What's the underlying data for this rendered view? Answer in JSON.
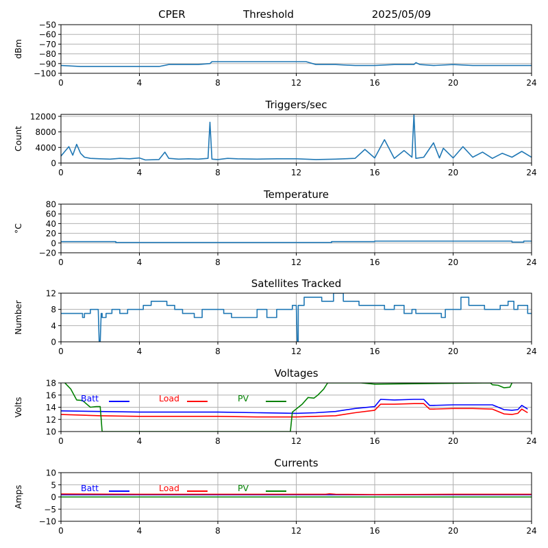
{
  "header": {
    "station": "CPER",
    "mode": "Threshold",
    "date": "2025/05/09"
  },
  "colors": {
    "series": "#1f77b4",
    "batt": "#0000ff",
    "load": "#ff0000",
    "pv": "#008000",
    "grid": "#b0b0b0"
  },
  "chart_data": [
    {
      "type": "line",
      "title": "",
      "ylabel": "dBm",
      "xlim": [
        0,
        24
      ],
      "xticks": [
        0,
        4,
        8,
        12,
        16,
        20,
        24
      ],
      "ylim": [
        -100,
        -50
      ],
      "yticks": [
        -100,
        -90,
        -80,
        -70,
        -60,
        -50
      ],
      "grid": true,
      "series": [
        {
          "color": "#1f77b4",
          "x": [
            0,
            1,
            2,
            3,
            4,
            5,
            5.5,
            7,
            7.6,
            7.7,
            9,
            10,
            12,
            12.5,
            13,
            14,
            15,
            16,
            17,
            18,
            18.1,
            18.3,
            19,
            20,
            21,
            22,
            23,
            24
          ],
          "y": [
            -92,
            -93,
            -93,
            -93,
            -93,
            -93,
            -91,
            -91,
            -90,
            -88,
            -88,
            -88,
            -88,
            -88,
            -91,
            -91,
            -92,
            -92,
            -91,
            -91,
            -89,
            -91,
            -92,
            -91,
            -92,
            -92,
            -92,
            -92
          ]
        }
      ]
    },
    {
      "type": "line",
      "title": "Triggers/sec",
      "ylabel": "Count",
      "xlim": [
        0,
        24
      ],
      "xticks": [
        0,
        4,
        8,
        12,
        16,
        20,
        24
      ],
      "ylim": [
        0,
        12500
      ],
      "yticks": [
        0,
        4000,
        8000,
        12000
      ],
      "grid": true,
      "series": [
        {
          "color": "#1f77b4",
          "x": [
            0,
            0.2,
            0.4,
            0.6,
            0.8,
            1,
            1.2,
            1.5,
            2,
            2.5,
            3,
            3.5,
            4,
            4.3,
            5,
            5.3,
            5.5,
            6,
            6.5,
            7,
            7.5,
            7.6,
            7.7,
            8,
            8.5,
            9,
            10,
            11,
            12,
            13,
            14,
            15,
            15.5,
            16,
            16.5,
            17,
            17.5,
            17.9,
            18,
            18.1,
            18.5,
            19,
            19.3,
            19.5,
            20,
            20.5,
            21,
            21.5,
            22,
            22.5,
            23,
            23.5,
            24
          ],
          "y": [
            1800,
            3000,
            4200,
            2000,
            4800,
            2500,
            1500,
            1200,
            1100,
            1000,
            1200,
            1100,
            1300,
            800,
            900,
            2800,
            1200,
            1000,
            1100,
            1000,
            1200,
            10500,
            1000,
            900,
            1200,
            1100,
            1000,
            1100,
            1100,
            900,
            1000,
            1200,
            3500,
            1300,
            6000,
            1200,
            3200,
            1500,
            12500,
            1200,
            1500,
            5200,
            1300,
            3800,
            1300,
            4200,
            1500,
            2800,
            1200,
            2500,
            1500,
            3000,
            1500
          ]
        }
      ]
    },
    {
      "type": "line",
      "title": "Temperature",
      "ylabel": "°C",
      "xlim": [
        0,
        24
      ],
      "xticks": [
        0,
        4,
        8,
        12,
        16,
        20,
        24
      ],
      "ylim": [
        -20,
        80
      ],
      "yticks": [
        -20,
        0,
        20,
        40,
        60,
        80
      ],
      "grid": true,
      "series": [
        {
          "color": "#1f77b4",
          "x": [
            0,
            2.8,
            2.8,
            13.8,
            13.8,
            16,
            16,
            23,
            23,
            23.6,
            23.6,
            24
          ],
          "y": [
            3,
            3,
            1,
            1,
            3,
            3,
            4,
            4,
            2,
            2,
            4,
            4
          ]
        }
      ]
    },
    {
      "type": "line",
      "title": "Satellites Tracked",
      "ylabel": "Number",
      "xlim": [
        0,
        24
      ],
      "xticks": [
        0,
        4,
        8,
        12,
        16,
        20,
        24
      ],
      "ylim": [
        0,
        12
      ],
      "yticks": [
        0,
        4,
        8,
        12
      ],
      "grid": true,
      "series": [
        {
          "color": "#1f77b4",
          "x": [
            0,
            1.1,
            1.1,
            1.2,
            1.2,
            1.5,
            1.5,
            1.9,
            1.95,
            2.0,
            2.05,
            2.1,
            2.1,
            2.3,
            2.3,
            2.6,
            2.6,
            3.0,
            3.0,
            3.4,
            3.4,
            4.2,
            4.2,
            4.6,
            4.6,
            5.4,
            5.4,
            5.8,
            5.8,
            6.2,
            6.2,
            6.8,
            6.8,
            7.2,
            7.2,
            8.3,
            8.3,
            8.7,
            8.7,
            10,
            10,
            10.5,
            10.5,
            11,
            11,
            11.8,
            11.8,
            12.0,
            12.05,
            12.1,
            12.1,
            12.4,
            12.4,
            13.3,
            13.3,
            13.9,
            13.9,
            14.4,
            14.4,
            15.2,
            15.2,
            16.5,
            16.5,
            17,
            17,
            17.5,
            17.5,
            17.9,
            17.9,
            18.1,
            18.1,
            19.4,
            19.4,
            19.6,
            19.6,
            20.4,
            20.4,
            20.8,
            20.8,
            21.6,
            21.6,
            22.4,
            22.4,
            22.8,
            22.8,
            23.1,
            23.1,
            23.3,
            23.3,
            23.8,
            23.8,
            24
          ],
          "y": [
            7,
            7,
            6,
            6,
            7,
            7,
            8,
            8,
            0,
            0,
            7,
            7,
            6,
            6,
            7,
            7,
            8,
            8,
            7,
            7,
            8,
            8,
            9,
            9,
            10,
            10,
            9,
            9,
            8,
            8,
            7,
            7,
            6,
            6,
            8,
            8,
            7,
            7,
            6,
            6,
            8,
            8,
            6,
            6,
            8,
            8,
            9,
            9,
            0,
            0,
            9,
            9,
            11,
            11,
            10,
            10,
            12,
            12,
            10,
            10,
            9,
            9,
            8,
            8,
            9,
            9,
            7,
            7,
            8,
            8,
            7,
            7,
            6,
            6,
            8,
            8,
            11,
            11,
            9,
            9,
            8,
            8,
            9,
            9,
            10,
            10,
            8,
            8,
            9,
            9,
            7,
            7
          ]
        }
      ]
    },
    {
      "type": "line",
      "title": "Voltages",
      "ylabel": "Volts",
      "xlim": [
        0,
        24
      ],
      "xticks": [
        0,
        4,
        8,
        12,
        16,
        20,
        24
      ],
      "ylim": [
        10,
        18
      ],
      "yticks": [
        10,
        12,
        14,
        16,
        18
      ],
      "grid": true,
      "legend": "top",
      "series": [
        {
          "name": "Batt",
          "color": "#0000ff",
          "x": [
            0,
            2,
            4,
            6,
            8,
            10,
            12,
            13,
            14,
            15,
            16,
            16.3,
            17,
            18,
            18.5,
            18.8,
            19,
            20,
            21,
            22,
            22.6,
            23,
            23.3,
            23.5,
            23.8
          ],
          "y": [
            13.4,
            13.3,
            13.2,
            13.2,
            13.2,
            13.1,
            13.0,
            13.1,
            13.3,
            13.8,
            14.1,
            15.3,
            15.2,
            15.3,
            15.3,
            14.3,
            14.3,
            14.4,
            14.4,
            14.4,
            13.6,
            13.5,
            13.6,
            14.3,
            13.7
          ]
        },
        {
          "name": "Load",
          "color": "#ff0000",
          "x": [
            0,
            2,
            4,
            6,
            8,
            10,
            12,
            13,
            14,
            15,
            16,
            16.3,
            17,
            18,
            18.5,
            18.8,
            19,
            20,
            21,
            22,
            22.6,
            23,
            23.3,
            23.5,
            23.8
          ],
          "y": [
            12.8,
            12.6,
            12.5,
            12.5,
            12.5,
            12.4,
            12.4,
            12.5,
            12.6,
            13.1,
            13.5,
            14.5,
            14.5,
            14.6,
            14.6,
            13.7,
            13.7,
            13.8,
            13.8,
            13.7,
            12.9,
            12.8,
            13.0,
            13.7,
            13.1
          ]
        },
        {
          "name": "PV",
          "color": "#008000",
          "x": [
            0.2,
            0.5,
            0.8,
            1.1,
            1.5,
            1.8,
            2.0,
            2.1,
            11.7,
            11.8,
            12.3,
            12.6,
            12.9,
            13.1,
            13.4,
            13.6,
            15.3,
            16.0,
            21.9,
            22.0,
            22.3,
            22.6,
            22.9,
            23.0
          ],
          "y": [
            18.0,
            17.0,
            15.2,
            15.1,
            14.0,
            14.1,
            14.1,
            10.0,
            10.0,
            13.2,
            14.5,
            15.6,
            15.5,
            16.0,
            17.0,
            18.0,
            18.0,
            17.8,
            18.0,
            17.7,
            17.6,
            17.2,
            17.3,
            18.0
          ]
        }
      ]
    },
    {
      "type": "line",
      "title": "Currents",
      "ylabel": "Amps",
      "xlim": [
        0,
        24
      ],
      "xticks": [
        0,
        4,
        8,
        12,
        16,
        20,
        24
      ],
      "ylim": [
        -10,
        10
      ],
      "yticks": [
        -10,
        -5,
        0,
        5,
        10
      ],
      "grid": true,
      "legend": "top",
      "series": [
        {
          "name": "Batt",
          "color": "#0000ff",
          "x": [
            0,
            24
          ],
          "y": [
            0.9,
            0.9
          ]
        },
        {
          "name": "Load",
          "color": "#ff0000",
          "x": [
            0,
            4,
            8,
            12,
            13.5,
            13.7,
            14,
            16,
            20,
            24
          ],
          "y": [
            1.2,
            1.1,
            1.1,
            1.1,
            1.1,
            1.3,
            1.1,
            1.0,
            1.1,
            1.1
          ]
        },
        {
          "name": "PV",
          "color": "#008000",
          "x": [
            0,
            24
          ],
          "y": [
            0.0,
            0.0
          ]
        }
      ]
    }
  ]
}
